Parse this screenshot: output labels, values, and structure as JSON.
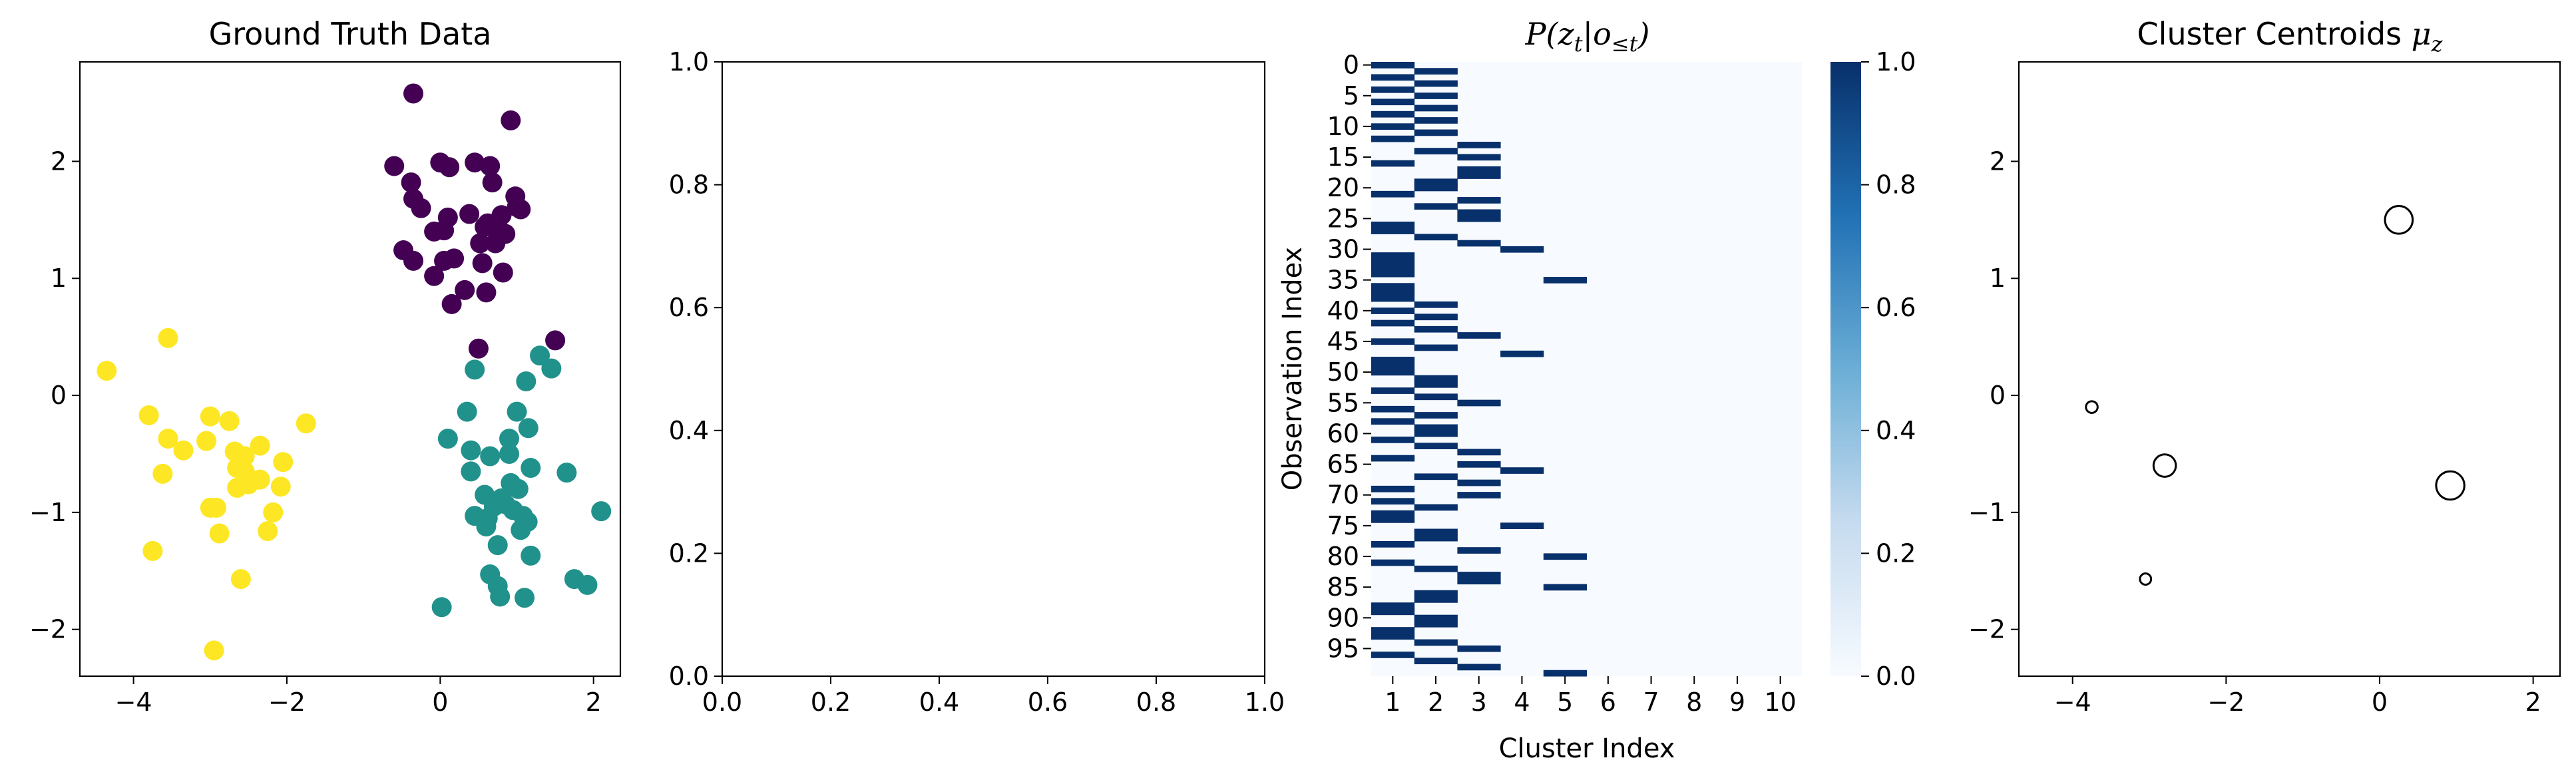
{
  "chart_data": [
    {
      "type": "scatter",
      "title": "Ground Truth Data",
      "xlabel": "",
      "ylabel": "",
      "xlim": [
        -4.7,
        2.35
      ],
      "ylim": [
        -2.4,
        2.85
      ],
      "xticks": [
        -4,
        -2,
        0,
        2
      ],
      "yticks": [
        -2,
        -1,
        0,
        1,
        2
      ],
      "series": [
        {
          "color": "#440154",
          "points": [
            [
              -0.35,
              2.58
            ],
            [
              0.92,
              2.35
            ],
            [
              -0.6,
              1.96
            ],
            [
              0,
              1.99
            ],
            [
              0.12,
              1.95
            ],
            [
              0.45,
              1.99
            ],
            [
              0.65,
              1.96
            ],
            [
              -0.38,
              1.82
            ],
            [
              0.68,
              1.82
            ],
            [
              -0.35,
              1.68
            ],
            [
              0.98,
              1.7
            ],
            [
              -0.25,
              1.6
            ],
            [
              0.1,
              1.52
            ],
            [
              0.38,
              1.55
            ],
            [
              0.8,
              1.54
            ],
            [
              1,
              1.61
            ],
            [
              1.05,
              1.59
            ],
            [
              0.58,
              1.44
            ],
            [
              0.62,
              1.47
            ],
            [
              0.75,
              1.44
            ],
            [
              -0.08,
              1.4
            ],
            [
              0.05,
              1.41
            ],
            [
              0.52,
              1.3
            ],
            [
              0.72,
              1.3
            ],
            [
              0.85,
              1.38
            ],
            [
              -0.48,
              1.24
            ],
            [
              -0.35,
              1.15
            ],
            [
              0.05,
              1.15
            ],
            [
              0.18,
              1.17
            ],
            [
              0.55,
              1.13
            ],
            [
              0.82,
              1.05
            ],
            [
              -0.08,
              1.02
            ],
            [
              0.32,
              0.9
            ],
            [
              0.6,
              0.88
            ],
            [
              0.15,
              0.78
            ],
            [
              0.5,
              0.4
            ],
            [
              1.5,
              0.47
            ]
          ]
        },
        {
          "color": "#21918c",
          "points": [
            [
              1.3,
              0.34
            ],
            [
              1.45,
              0.23
            ],
            [
              0.45,
              0.22
            ],
            [
              1.12,
              0.12
            ],
            [
              0.35,
              -0.14
            ],
            [
              1,
              -0.14
            ],
            [
              0.9,
              -0.37
            ],
            [
              1.15,
              -0.28
            ],
            [
              0.1,
              -0.37
            ],
            [
              0.4,
              -0.47
            ],
            [
              0.65,
              -0.52
            ],
            [
              0.9,
              -0.5
            ],
            [
              1.18,
              -0.62
            ],
            [
              1.65,
              -0.66
            ],
            [
              0.4,
              -0.65
            ],
            [
              0.58,
              -0.85
            ],
            [
              0.8,
              -0.88
            ],
            [
              0.92,
              -0.75
            ],
            [
              1.02,
              -0.8
            ],
            [
              0.85,
              -0.93
            ],
            [
              0.7,
              -0.95
            ],
            [
              0.45,
              -1.03
            ],
            [
              0.62,
              -1.05
            ],
            [
              0.95,
              -0.98
            ],
            [
              1.08,
              -1.03
            ],
            [
              1.14,
              -1.08
            ],
            [
              2.1,
              -0.99
            ],
            [
              0.6,
              -1.12
            ],
            [
              1.05,
              -1.15
            ],
            [
              0.75,
              -1.28
            ],
            [
              1.18,
              -1.37
            ],
            [
              0.65,
              -1.53
            ],
            [
              0.75,
              -1.63
            ],
            [
              1.75,
              -1.57
            ],
            [
              1.92,
              -1.62
            ],
            [
              1.1,
              -1.73
            ],
            [
              0.78,
              -1.72
            ],
            [
              0.02,
              -1.81
            ]
          ]
        },
        {
          "color": "#fde725",
          "points": [
            [
              -3.55,
              0.49
            ],
            [
              -4.35,
              0.21
            ],
            [
              -3.8,
              -0.17
            ],
            [
              -3,
              -0.18
            ],
            [
              -2.75,
              -0.22
            ],
            [
              -1.75,
              -0.24
            ],
            [
              -3.55,
              -0.37
            ],
            [
              -3.35,
              -0.47
            ],
            [
              -3.05,
              -0.39
            ],
            [
              -2.68,
              -0.48
            ],
            [
              -2.55,
              -0.52
            ],
            [
              -2.35,
              -0.43
            ],
            [
              -2.05,
              -0.57
            ],
            [
              -2.65,
              -0.62
            ],
            [
              -2.55,
              -0.65
            ],
            [
              -3.62,
              -0.67
            ],
            [
              -2.35,
              -0.72
            ],
            [
              -2.65,
              -0.79
            ],
            [
              -2.5,
              -0.76
            ],
            [
              -2.08,
              -0.78
            ],
            [
              -2.18,
              -1
            ],
            [
              -3,
              -0.96
            ],
            [
              -2.92,
              -0.96
            ],
            [
              -2.88,
              -1.18
            ],
            [
              -2.25,
              -1.16
            ],
            [
              -3.75,
              -1.33
            ],
            [
              -2.6,
              -1.57
            ],
            [
              -2.95,
              -2.18
            ]
          ]
        }
      ]
    },
    {
      "type": "line",
      "title": "",
      "xlim": [
        0,
        1
      ],
      "ylim": [
        0,
        1
      ],
      "xticks": [
        "0.0",
        "0.2",
        "0.4",
        "0.6",
        "0.8",
        "1.0"
      ],
      "yticks": [
        "0.0",
        "0.2",
        "0.4",
        "0.6",
        "0.8",
        "1.0"
      ],
      "series": []
    },
    {
      "type": "heatmap",
      "title_parts": [
        "P(z",
        "t",
        "|o",
        "≤t",
        ")"
      ],
      "xlabel": "Cluster Index",
      "ylabel": "Observation Index",
      "x_categories": [
        "1",
        "2",
        "3",
        "4",
        "5",
        "6",
        "7",
        "8",
        "9",
        "10"
      ],
      "y_ticks": [
        "0",
        "5",
        "10",
        "15",
        "20",
        "25",
        "30",
        "35",
        "40",
        "45",
        "50",
        "55",
        "60",
        "65",
        "70",
        "75",
        "80",
        "85",
        "90",
        "95"
      ],
      "n_rows": 100,
      "colormap": [
        "#f7fbff",
        "#08306b"
      ],
      "colorbar_ticks": [
        "0.0",
        "0.2",
        "0.4",
        "0.6",
        "0.8",
        "1.0"
      ],
      "vmin": 0,
      "vmax": 1,
      "argmax_cluster_per_row": [
        1,
        2,
        1,
        2,
        1,
        2,
        1,
        2,
        1,
        2,
        1,
        2,
        1,
        3,
        2,
        3,
        1,
        3,
        3,
        2,
        2,
        1,
        3,
        2,
        3,
        3,
        1,
        1,
        2,
        3,
        4,
        1,
        1,
        1,
        1,
        5,
        1,
        1,
        1,
        2,
        1,
        2,
        1,
        2,
        3,
        1,
        2,
        4,
        1,
        1,
        1,
        2,
        2,
        1,
        2,
        3,
        1,
        2,
        1,
        2,
        2,
        1,
        2,
        3,
        1,
        3,
        4,
        2,
        3,
        1,
        3,
        1,
        2,
        1,
        1,
        4,
        2,
        2,
        1,
        3,
        5,
        1,
        2,
        3,
        3,
        5,
        2,
        2,
        1,
        1,
        2,
        2,
        1,
        1,
        2,
        3,
        1,
        2,
        3,
        5
      ]
    },
    {
      "type": "scatter",
      "title_text": "Cluster Centroids ",
      "title_symbol": "μ",
      "title_sub": "z",
      "xlim": [
        -4.7,
        2.35
      ],
      "ylim": [
        -2.4,
        2.85
      ],
      "xticks": [
        -4,
        -2,
        0,
        2
      ],
      "yticks": [
        -2,
        -1,
        0,
        1,
        2
      ],
      "centroids": [
        {
          "x": 0.25,
          "y": 1.5,
          "weight": 0.37
        },
        {
          "x": 0.92,
          "y": -0.77,
          "weight": 0.38
        },
        {
          "x": -2.8,
          "y": -0.6,
          "weight": 0.27
        },
        {
          "x": -3.75,
          "y": -0.1,
          "weight": 0.07
        },
        {
          "x": -3.05,
          "y": -1.57,
          "weight": 0.06
        }
      ]
    }
  ]
}
